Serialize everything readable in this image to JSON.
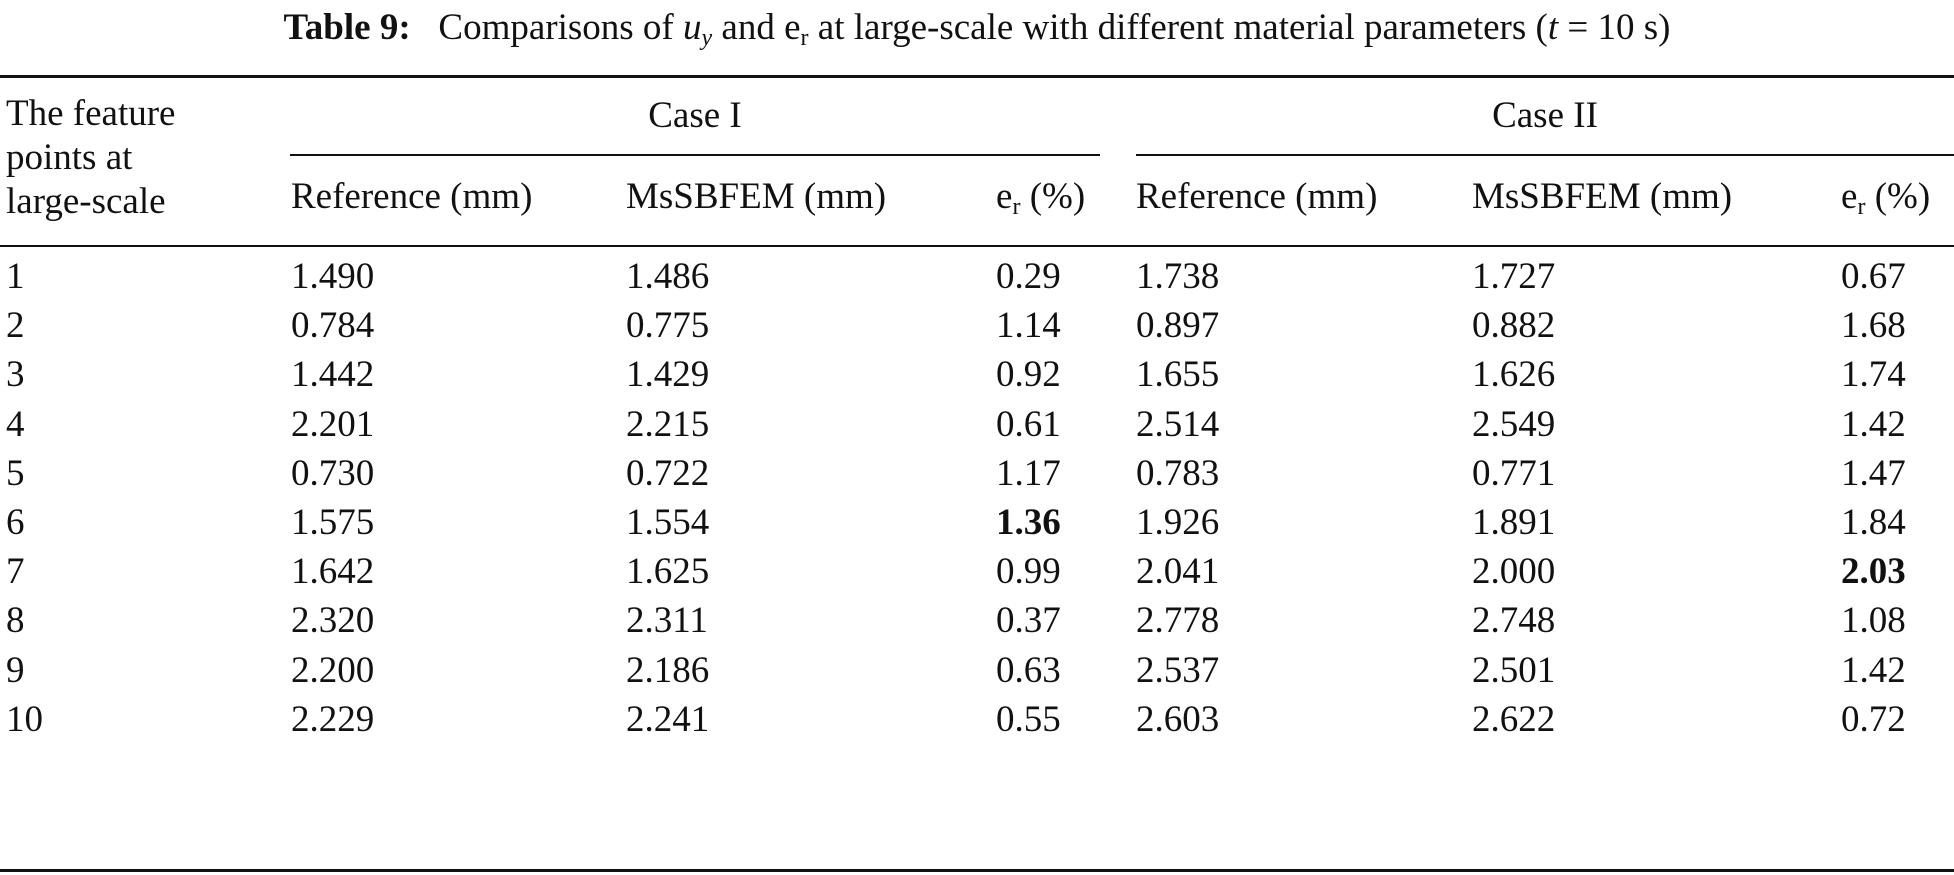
{
  "caption": {
    "label": "Table 9:",
    "text_before_uy": "Comparisons of",
    "uy_symbol": "u",
    "uy_sub": "y",
    "text_and": "and",
    "er_symbol": "e",
    "er_sub": "r",
    "text_after": "at large-scale with different material parameters (",
    "t_symbol": "t",
    "t_value": "= 10 s)"
  },
  "header": {
    "first_col": [
      "The feature",
      "points at",
      "large-scale"
    ],
    "case1": "Case I",
    "case2": "Case II",
    "reference": "Reference (mm)",
    "mssbfem": "MsSBFEM (mm)",
    "er_symbol": "e",
    "er_sub": "r",
    "er_unit": "(%)"
  },
  "rows": [
    [
      "1",
      "1.490",
      "1.486",
      "0.29",
      "1.738",
      "1.727",
      "0.67"
    ],
    [
      "2",
      "0.784",
      "0.775",
      "1.14",
      "0.897",
      "0.882",
      "1.68"
    ],
    [
      "3",
      "1.442",
      "1.429",
      "0.92",
      "1.655",
      "1.626",
      "1.74"
    ],
    [
      "4",
      "2.201",
      "2.215",
      "0.61",
      "2.514",
      "2.549",
      "1.42"
    ],
    [
      "5",
      "0.730",
      "0.722",
      "1.17",
      "0.783",
      "0.771",
      "1.47"
    ],
    [
      "6",
      "1.575",
      "1.554",
      "1.36",
      "1.926",
      "1.891",
      "1.84"
    ],
    [
      "7",
      "1.642",
      "1.625",
      "0.99",
      "2.041",
      "2.000",
      "2.03"
    ],
    [
      "8",
      "2.320",
      "2.311",
      "0.37",
      "2.778",
      "2.748",
      "1.08"
    ],
    [
      "9",
      "2.200",
      "2.186",
      "0.63",
      "2.537",
      "2.501",
      "1.42"
    ],
    [
      "10",
      "2.229",
      "2.241",
      "0.55",
      "2.603",
      "2.622",
      "0.72"
    ]
  ],
  "bold_cells": [
    {
      "row": 5,
      "col": 3
    },
    {
      "row": 6,
      "col": 6
    }
  ]
}
